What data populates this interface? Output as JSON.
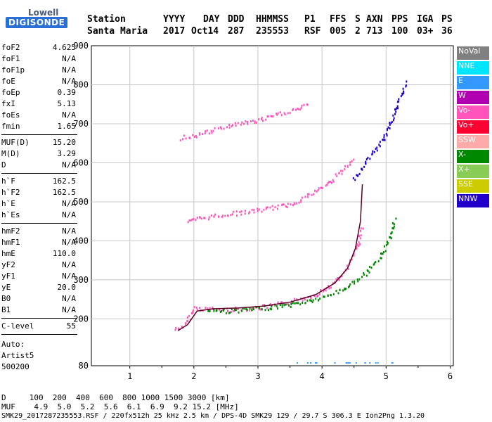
{
  "logo": {
    "top": "Lowell",
    "bottom": "DIGISONDE"
  },
  "header": {
    "col_labels": [
      "Station",
      "YYYY",
      "DAY",
      "DDD",
      "HHMMSS",
      "P1",
      "FFS",
      "S",
      "AXN",
      "PPS",
      "IGA",
      "PS"
    ],
    "col_values": [
      "Santa Maria",
      "2017",
      "Oct14",
      "287",
      "235553",
      "RSF",
      "005",
      "2",
      "713",
      "100",
      "03+",
      "36"
    ]
  },
  "params": {
    "group1": [
      {
        "label": "foF2",
        "value": "4.625"
      },
      {
        "label": "foF1",
        "value": "N/A"
      },
      {
        "label": "foF1p",
        "value": "N/A"
      },
      {
        "label": "foE",
        "value": "N/A"
      },
      {
        "label": "foEp",
        "value": "0.39"
      },
      {
        "label": "fxI",
        "value": "5.13"
      },
      {
        "label": "foEs",
        "value": "N/A"
      },
      {
        "label": "fmin",
        "value": "1.65"
      }
    ],
    "group2": [
      {
        "label": "MUF(D)",
        "value": "15.20"
      },
      {
        "label": "M(D)",
        "value": "3.29"
      },
      {
        "label": "D",
        "value": "N/A"
      }
    ],
    "group3": [
      {
        "label": "h`F",
        "value": "162.5"
      },
      {
        "label": "h`F2",
        "value": "162.5"
      },
      {
        "label": "h`E",
        "value": "N/A"
      },
      {
        "label": "h`Es",
        "value": "N/A"
      }
    ],
    "group4": [
      {
        "label": "hmF2",
        "value": "N/A"
      },
      {
        "label": "hmF1",
        "value": "N/A"
      },
      {
        "label": "hmE",
        "value": "110.0"
      },
      {
        "label": "yF2",
        "value": "N/A"
      },
      {
        "label": "yF1",
        "value": "N/A"
      },
      {
        "label": "yE",
        "value": "20.0"
      },
      {
        "label": "B0",
        "value": "N/A"
      },
      {
        "label": "B1",
        "value": "N/A"
      }
    ],
    "group5": [
      {
        "label": "C-level",
        "value": "55"
      }
    ],
    "auto_label": "Auto:",
    "auto_software": "Artist5",
    "auto_version": "500200"
  },
  "legend": [
    {
      "label": "NoVal",
      "color": "#808080"
    },
    {
      "label": "NNE",
      "color": "#00e5ff"
    },
    {
      "label": "E",
      "color": "#3399ff"
    },
    {
      "label": "W",
      "color": "#b000b0"
    },
    {
      "label": "Vo-",
      "color": "#ff55bb"
    },
    {
      "label": "Vo+",
      "color": "#ff0033"
    },
    {
      "label": "SSW",
      "color": "#ffaaaa"
    },
    {
      "label": "X-",
      "color": "#008800"
    },
    {
      "label": "X+",
      "color": "#88cc55"
    },
    {
      "label": "SSE",
      "color": "#cccc00"
    },
    {
      "label": "NNW",
      "color": "#2200cc"
    }
  ],
  "bottom": {
    "d_row": "D     100  200  400  600  800 1000 1500 3000 [km]",
    "muf_row": "MUF    4.9  5.0  5.2  5.6  6.1  6.9  9.2 15.2 [MHz]",
    "file_row": "SMK29_2017287235553.RSF / 220fx512h 25 kHz 2.5 km / DPS-4D SMK29 129 / 29.7 S 306.3 E Ion2Png 1.3.20"
  },
  "chart_data": {
    "type": "scatter",
    "x_ticks": [
      "1",
      "2",
      "3",
      "4",
      "5",
      "6"
    ],
    "y_ticks": [
      "80",
      "200",
      "300",
      "400",
      "500",
      "600",
      "700",
      "800",
      "900"
    ],
    "xlim": [
      0.4,
      6.05
    ],
    "ylim": [
      80,
      900
    ],
    "grid": true,
    "traces": [
      {
        "name": "O-trace",
        "color": "#ff55bb",
        "x": [
          1.7,
          1.85,
          2.0,
          2.2,
          2.5,
          3.0,
          3.5,
          3.9,
          4.2,
          4.4,
          4.55,
          4.62
        ],
        "y": [
          175,
          185,
          230,
          228,
          225,
          230,
          245,
          265,
          295,
          335,
          390,
          440
        ]
      },
      {
        "name": "X-trace",
        "color": "#008800",
        "x": [
          2.2,
          2.5,
          3.0,
          3.5,
          4.0,
          4.4,
          4.7,
          4.9,
          5.05,
          5.13
        ],
        "y": [
          225,
          222,
          228,
          238,
          255,
          285,
          320,
          360,
          410,
          460
        ]
      },
      {
        "name": "F-second-hop",
        "color": "#ff55bb",
        "x": [
          1.9,
          2.1,
          2.5,
          3.0,
          3.5,
          3.8,
          4.1,
          4.3,
          4.5
        ],
        "y": [
          450,
          460,
          470,
          480,
          495,
          520,
          550,
          580,
          610
        ]
      },
      {
        "name": "NNW-trace",
        "color": "#2200cc",
        "x": [
          4.5,
          4.7,
          4.9,
          5.0,
          5.1,
          5.2,
          5.3
        ],
        "y": [
          560,
          610,
          650,
          680,
          720,
          760,
          810
        ]
      },
      {
        "name": "third-hop",
        "color": "#ff55bb",
        "x": [
          1.8,
          2.2,
          2.6,
          3.0,
          3.4,
          3.8
        ],
        "y": [
          665,
          680,
          700,
          710,
          730,
          750
        ]
      }
    ],
    "profile": {
      "color": "#5a0020",
      "x": [
        1.75,
        1.9,
        2.05,
        2.3,
        2.7,
        3.1,
        3.5,
        3.9,
        4.2,
        4.4,
        4.52,
        4.6,
        4.63
      ],
      "y": [
        170,
        185,
        220,
        226,
        228,
        233,
        243,
        262,
        292,
        330,
        380,
        450,
        545
      ]
    }
  }
}
